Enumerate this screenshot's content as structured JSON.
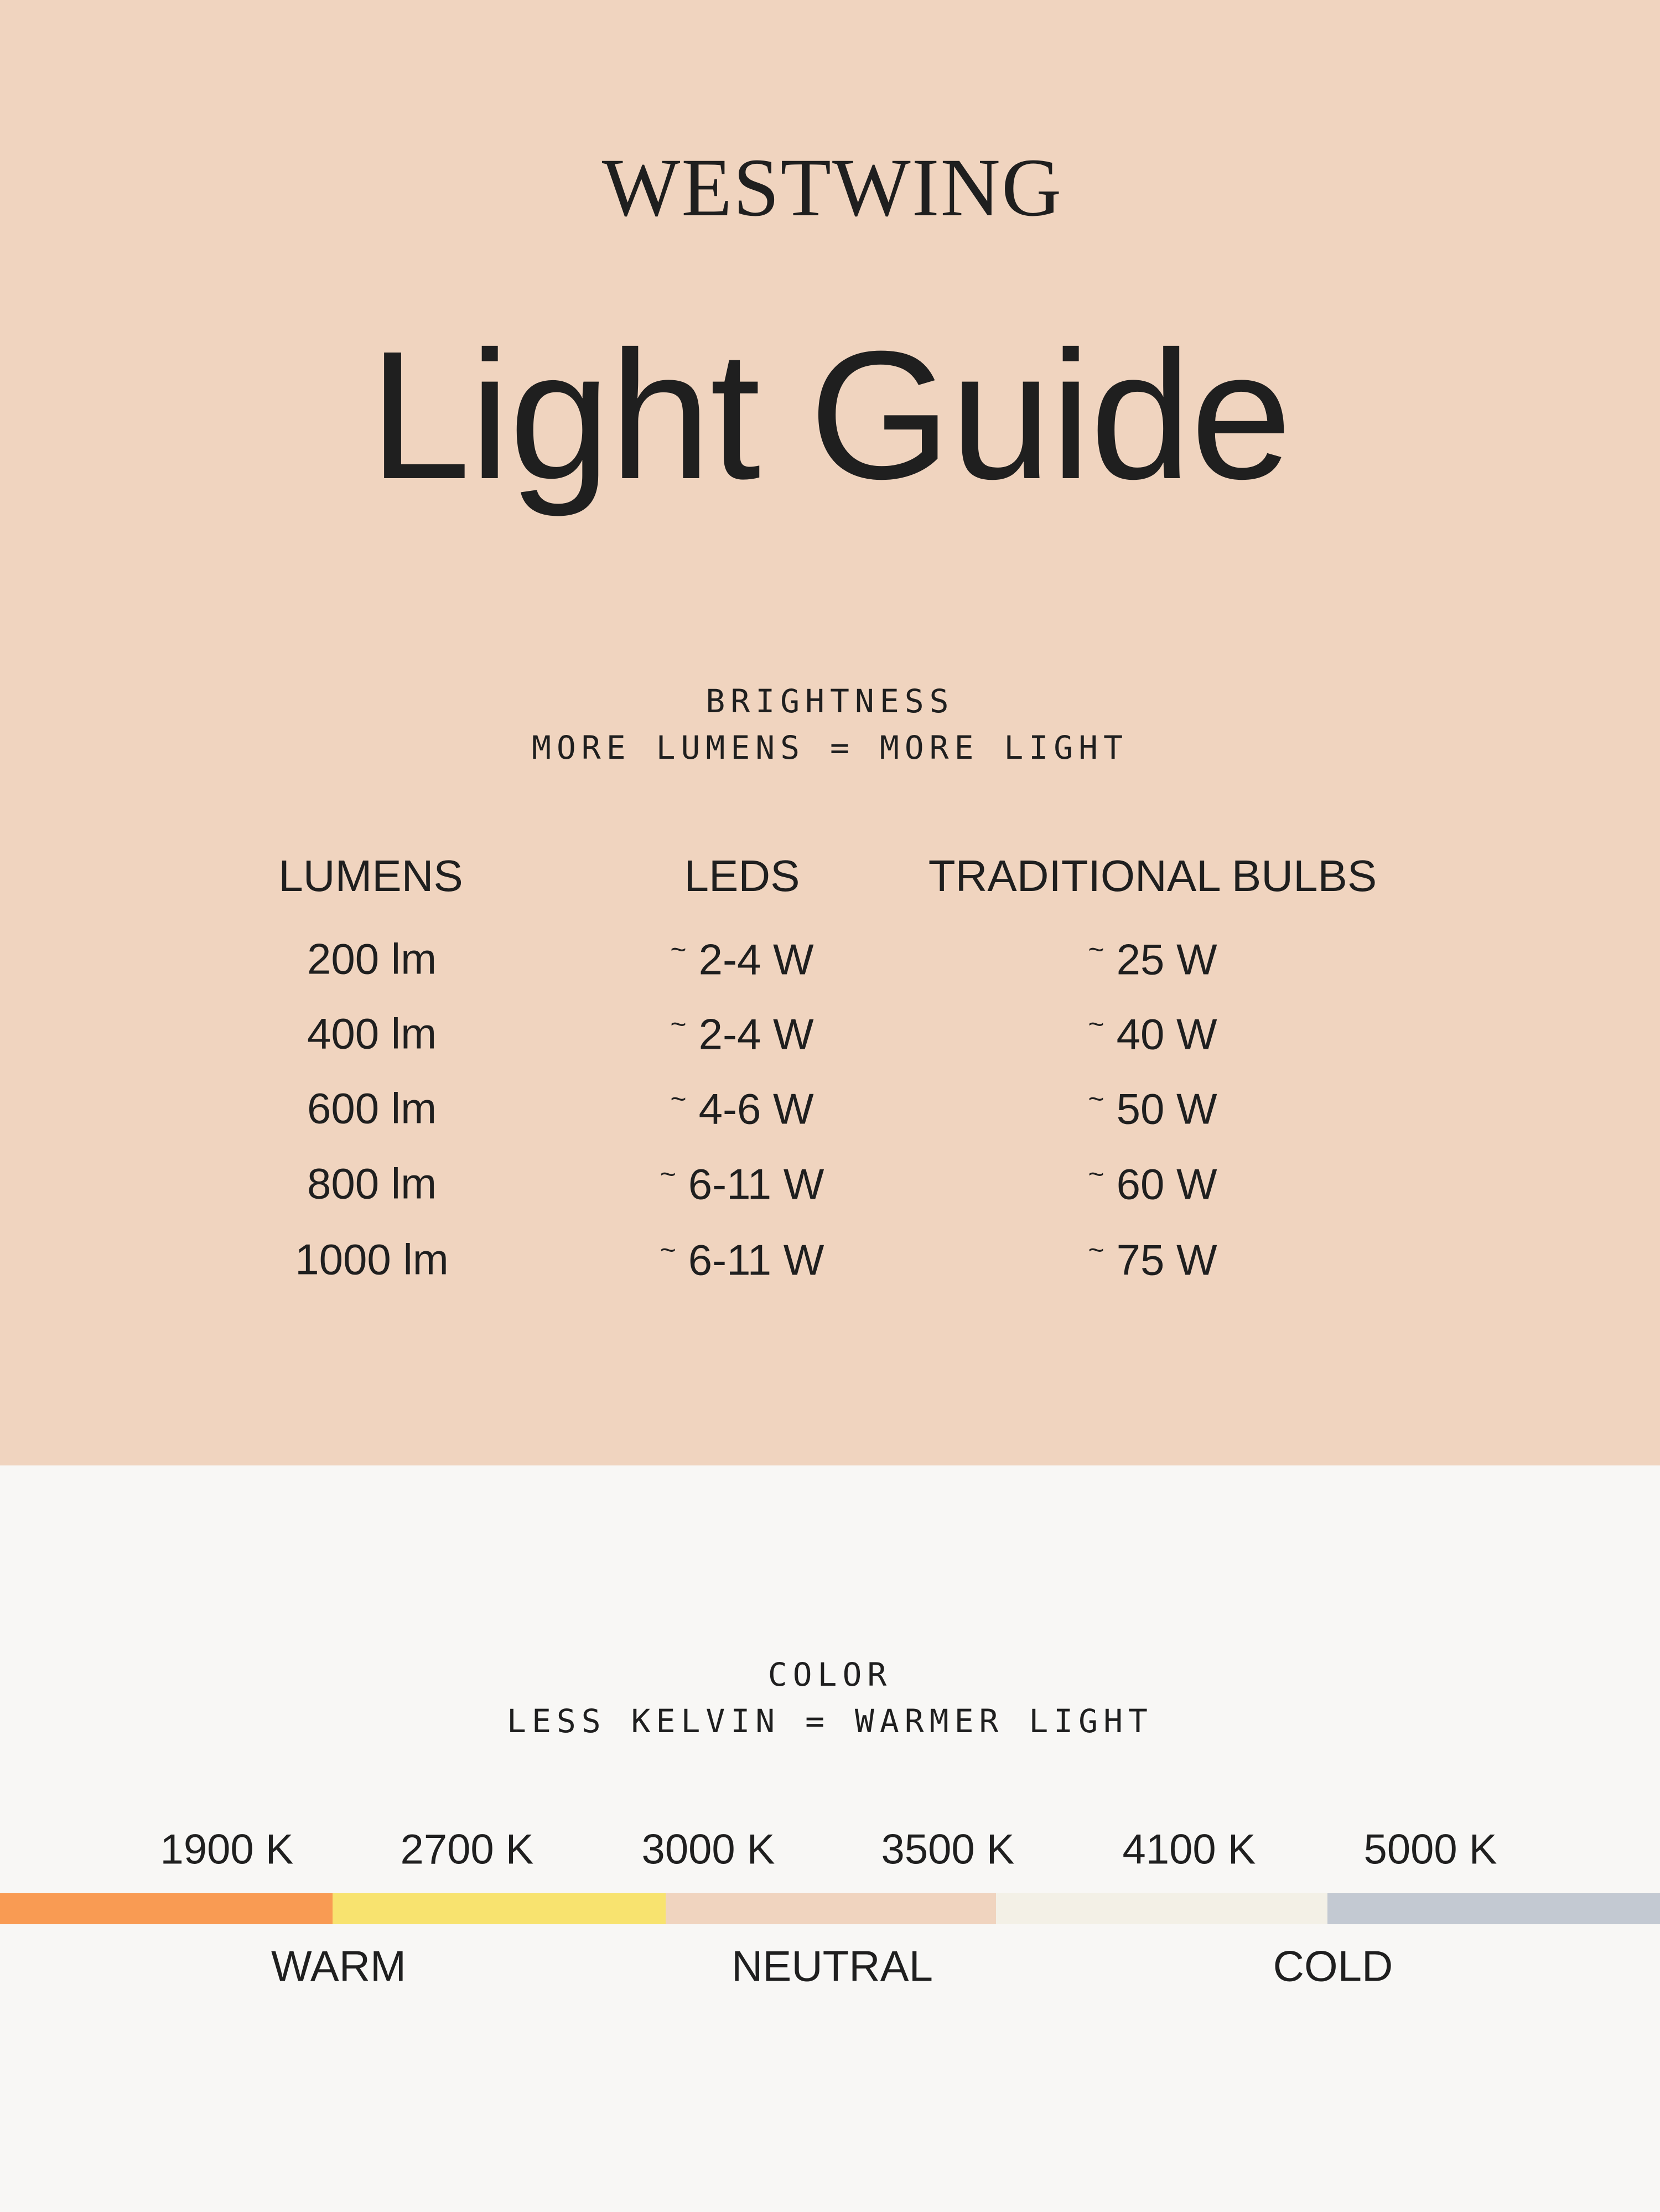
{
  "brand": "WESTWING",
  "title": "Light Guide",
  "brightness": {
    "heading": "BRIGHTNESS",
    "subheading": "MORE LUMENS = MORE LIGHT",
    "columns": [
      "LUMENS",
      "LEDS",
      "TRADITIONAL BULBS"
    ],
    "rows": [
      {
        "lumens": "200 lm",
        "leds": "2-4 W",
        "bulbs": "25 W"
      },
      {
        "lumens": "400 lm",
        "leds": "2-4 W",
        "bulbs": "40 W"
      },
      {
        "lumens": "600 lm",
        "leds": "4-6 W",
        "bulbs": "50 W"
      },
      {
        "lumens": "800 lm",
        "leds": "6-11 W",
        "bulbs": "60 W"
      },
      {
        "lumens": "1000 lm",
        "leds": "6-11 W",
        "bulbs": "75 W"
      }
    ],
    "approx_symbol": "~"
  },
  "color": {
    "heading": "COLOR",
    "subheading": "LESS KELVIN = WARMER LIGHT",
    "kelvin": [
      "1900 K",
      "2700 K",
      "3000 K",
      "3500 K",
      "4100 K",
      "5000 K"
    ],
    "swatches": [
      "#F99B53",
      "#F8E36F",
      "#F0D4BF",
      "#F3F0E6",
      "#C3C9D2"
    ],
    "categories": [
      "WARM",
      "NEUTRAL",
      "COLD"
    ]
  },
  "colors": {
    "top_background": "#F0D4BF",
    "bottom_background": "#F8F7F5",
    "text": "#1F1F1F"
  }
}
